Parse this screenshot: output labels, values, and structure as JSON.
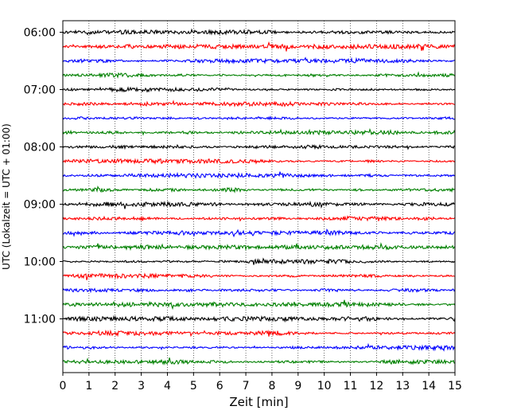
{
  "chart_data": {
    "type": "line",
    "title": "",
    "xlabel": "Zeit  [min]",
    "ylabel": "UTC (Lokalzeit = UTC + 01:00)",
    "xlim": [
      0,
      15
    ],
    "x_ticks": [
      "0",
      "1",
      "2",
      "3",
      "4",
      "5",
      "6",
      "7",
      "8",
      "9",
      "10",
      "11",
      "12",
      "13",
      "14",
      "15"
    ],
    "y_tick_labels": [
      "06:00",
      "07:00",
      "08:00",
      "09:00",
      "10:00",
      "11:00"
    ],
    "grid": "vertical dotted",
    "trace_colors": [
      "#000000",
      "#ff0000",
      "#0000ff",
      "#008000"
    ],
    "traces": [
      {
        "start": "06:00"
      },
      {
        "start": "06:15"
      },
      {
        "start": "06:30"
      },
      {
        "start": "06:45"
      },
      {
        "start": "07:00"
      },
      {
        "start": "07:15"
      },
      {
        "start": "07:30"
      },
      {
        "start": "07:45"
      },
      {
        "start": "08:00"
      },
      {
        "start": "08:15"
      },
      {
        "start": "08:30"
      },
      {
        "start": "08:45"
      },
      {
        "start": "09:00"
      },
      {
        "start": "09:15"
      },
      {
        "start": "09:30"
      },
      {
        "start": "09:45"
      },
      {
        "start": "10:00"
      },
      {
        "start": "10:15"
      },
      {
        "start": "10:30"
      },
      {
        "start": "10:45"
      },
      {
        "start": "11:00"
      },
      {
        "start": "11:15"
      },
      {
        "start": "11:30"
      },
      {
        "start": "11:45"
      }
    ]
  }
}
